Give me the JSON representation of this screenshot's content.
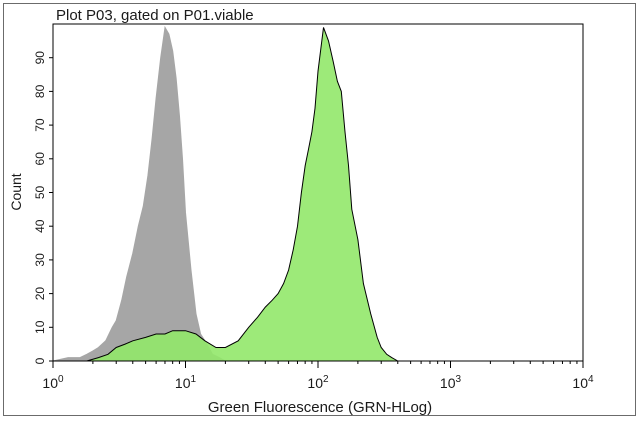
{
  "chart_data": {
    "type": "area",
    "title": "Plot P03, gated on P01.viable",
    "xlabel": "Green Fluorescence (GRN-HLog)",
    "ylabel": "Count",
    "x_scale": "log",
    "xlim": [
      1,
      10000
    ],
    "ylim": [
      0,
      100
    ],
    "x_ticks": [
      {
        "value": 1,
        "base": "10",
        "exp": "0"
      },
      {
        "value": 10,
        "base": "10",
        "exp": "1"
      },
      {
        "value": 100,
        "base": "10",
        "exp": "2"
      },
      {
        "value": 1000,
        "base": "10",
        "exp": "3"
      },
      {
        "value": 10000,
        "base": "10",
        "exp": "4"
      }
    ],
    "y_ticks": [
      "0",
      "10",
      "20",
      "30",
      "40",
      "50",
      "60",
      "70",
      "80",
      "90"
    ],
    "grid": false,
    "legend": "none",
    "series": [
      {
        "color": "#a6a6a6",
        "outline": "#a6a6a6",
        "x": [
          1.0,
          1.3,
          1.6,
          1.8,
          2.0,
          2.2,
          2.5,
          2.8,
          3.0,
          3.3,
          3.6,
          4.0,
          4.4,
          4.8,
          5.2,
          5.6,
          6.0,
          6.5,
          7.0,
          7.5,
          8.0,
          8.5,
          9.0,
          9.5,
          10.0,
          11.0,
          12.0,
          13.0,
          14.0,
          15.0,
          16.0,
          18.0,
          20.0
        ],
        "y": [
          0,
          1,
          1,
          2,
          3,
          4,
          6,
          10,
          12,
          18,
          25,
          32,
          40,
          46,
          55,
          66,
          78,
          90,
          99,
          97,
          92,
          84,
          73,
          60,
          44,
          27,
          14,
          8,
          6,
          4,
          2,
          1,
          0
        ]
      },
      {
        "color": "#92e86a",
        "outline": "#000000",
        "x": [
          1.8,
          2.2,
          2.6,
          3.0,
          3.5,
          4.0,
          5.0,
          6.0,
          7.0,
          8.0,
          9.0,
          10.0,
          12.0,
          14.0,
          17.0,
          20.0,
          25.0,
          30.0,
          35.0,
          40.0,
          45.0,
          50.0,
          55.0,
          60.0,
          65.0,
          70.0,
          75.0,
          80.0,
          85.0,
          90.0,
          95.0,
          100.0,
          110.0,
          120.0,
          130.0,
          140.0,
          150.0,
          160.0,
          170.0,
          180.0,
          200.0,
          220.0,
          250.0,
          280.0,
          300.0,
          330.0,
          360.0,
          400.0
        ],
        "y": [
          0,
          1,
          2,
          4,
          5,
          6,
          7,
          8,
          8,
          9,
          9,
          9,
          8,
          6,
          4,
          4,
          6,
          10,
          13,
          16,
          18,
          20,
          23,
          27,
          33,
          40,
          50,
          58,
          63,
          68,
          75,
          86,
          99,
          95,
          89,
          83,
          80,
          68,
          58,
          45,
          36,
          23,
          14,
          7,
          4,
          2,
          1,
          0
        ]
      }
    ]
  }
}
